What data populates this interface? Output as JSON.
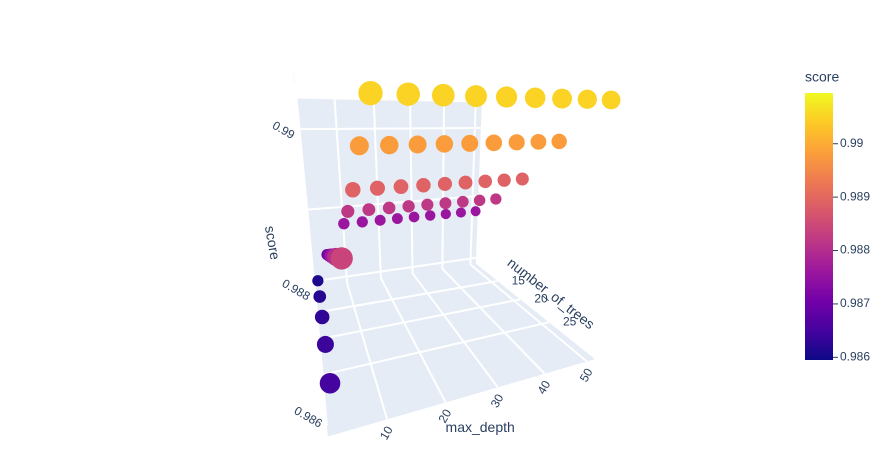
{
  "chart_data": {
    "type": "scatter3d",
    "x_title": "max_depth",
    "y_title": "number_of_trees",
    "z_title": "score",
    "x": [
      2,
      5,
      10,
      15,
      20,
      25,
      30,
      35,
      40,
      45,
      50,
      2,
      5,
      10,
      15,
      20,
      25,
      30,
      35,
      40,
      45,
      50,
      2,
      5,
      10,
      15,
      20,
      25,
      30,
      35,
      40,
      45,
      50,
      2,
      5,
      10,
      15,
      20,
      25,
      30,
      35,
      40,
      45,
      50,
      2,
      5,
      10,
      15,
      20,
      25,
      30,
      35,
      40,
      45,
      50
    ],
    "y": [
      10,
      10,
      10,
      10,
      10,
      10,
      10,
      10,
      10,
      10,
      10,
      15,
      15,
      15,
      15,
      15,
      15,
      15,
      15,
      15,
      15,
      15,
      20,
      20,
      20,
      20,
      20,
      20,
      20,
      20,
      20,
      20,
      20,
      25,
      25,
      25,
      25,
      25,
      25,
      25,
      25,
      25,
      25,
      25,
      30,
      30,
      30,
      30,
      30,
      30,
      30,
      30,
      30,
      30,
      30
    ],
    "z": [
      0.9861,
      0.9868,
      0.9876,
      0.9876,
      0.9876,
      0.9876,
      0.9876,
      0.9876,
      0.9876,
      0.9876,
      0.9876,
      0.9862,
      0.9872,
      0.9882,
      0.9882,
      0.9882,
      0.9882,
      0.9882,
      0.9882,
      0.9882,
      0.9882,
      0.9882,
      0.9863,
      0.9876,
      0.9889,
      0.9889,
      0.9889,
      0.9889,
      0.9889,
      0.9889,
      0.9889,
      0.9889,
      0.9889,
      0.9864,
      0.988,
      0.9898,
      0.9898,
      0.9898,
      0.9898,
      0.9898,
      0.9898,
      0.9898,
      0.9898,
      0.9898,
      0.9865,
      0.9884,
      0.9905,
      0.9905,
      0.9905,
      0.9905,
      0.9905,
      0.9905,
      0.9905,
      0.9905,
      0.9905
    ],
    "xlim": [
      1,
      52
    ],
    "xticks": [
      10,
      20,
      30,
      40,
      50
    ],
    "ylim": [
      9,
      31
    ],
    "yticks": [
      15,
      20,
      25
    ],
    "zlim": [
      0.9858,
      0.9907
    ],
    "zticks": [
      0.986,
      0.988,
      0.99
    ],
    "colorscale": "plasma",
    "colorbar": {
      "title": "score",
      "range": [
        0.98595,
        0.99095
      ],
      "ticks": [
        0.986,
        0.987,
        0.988,
        0.989,
        0.99
      ]
    }
  }
}
